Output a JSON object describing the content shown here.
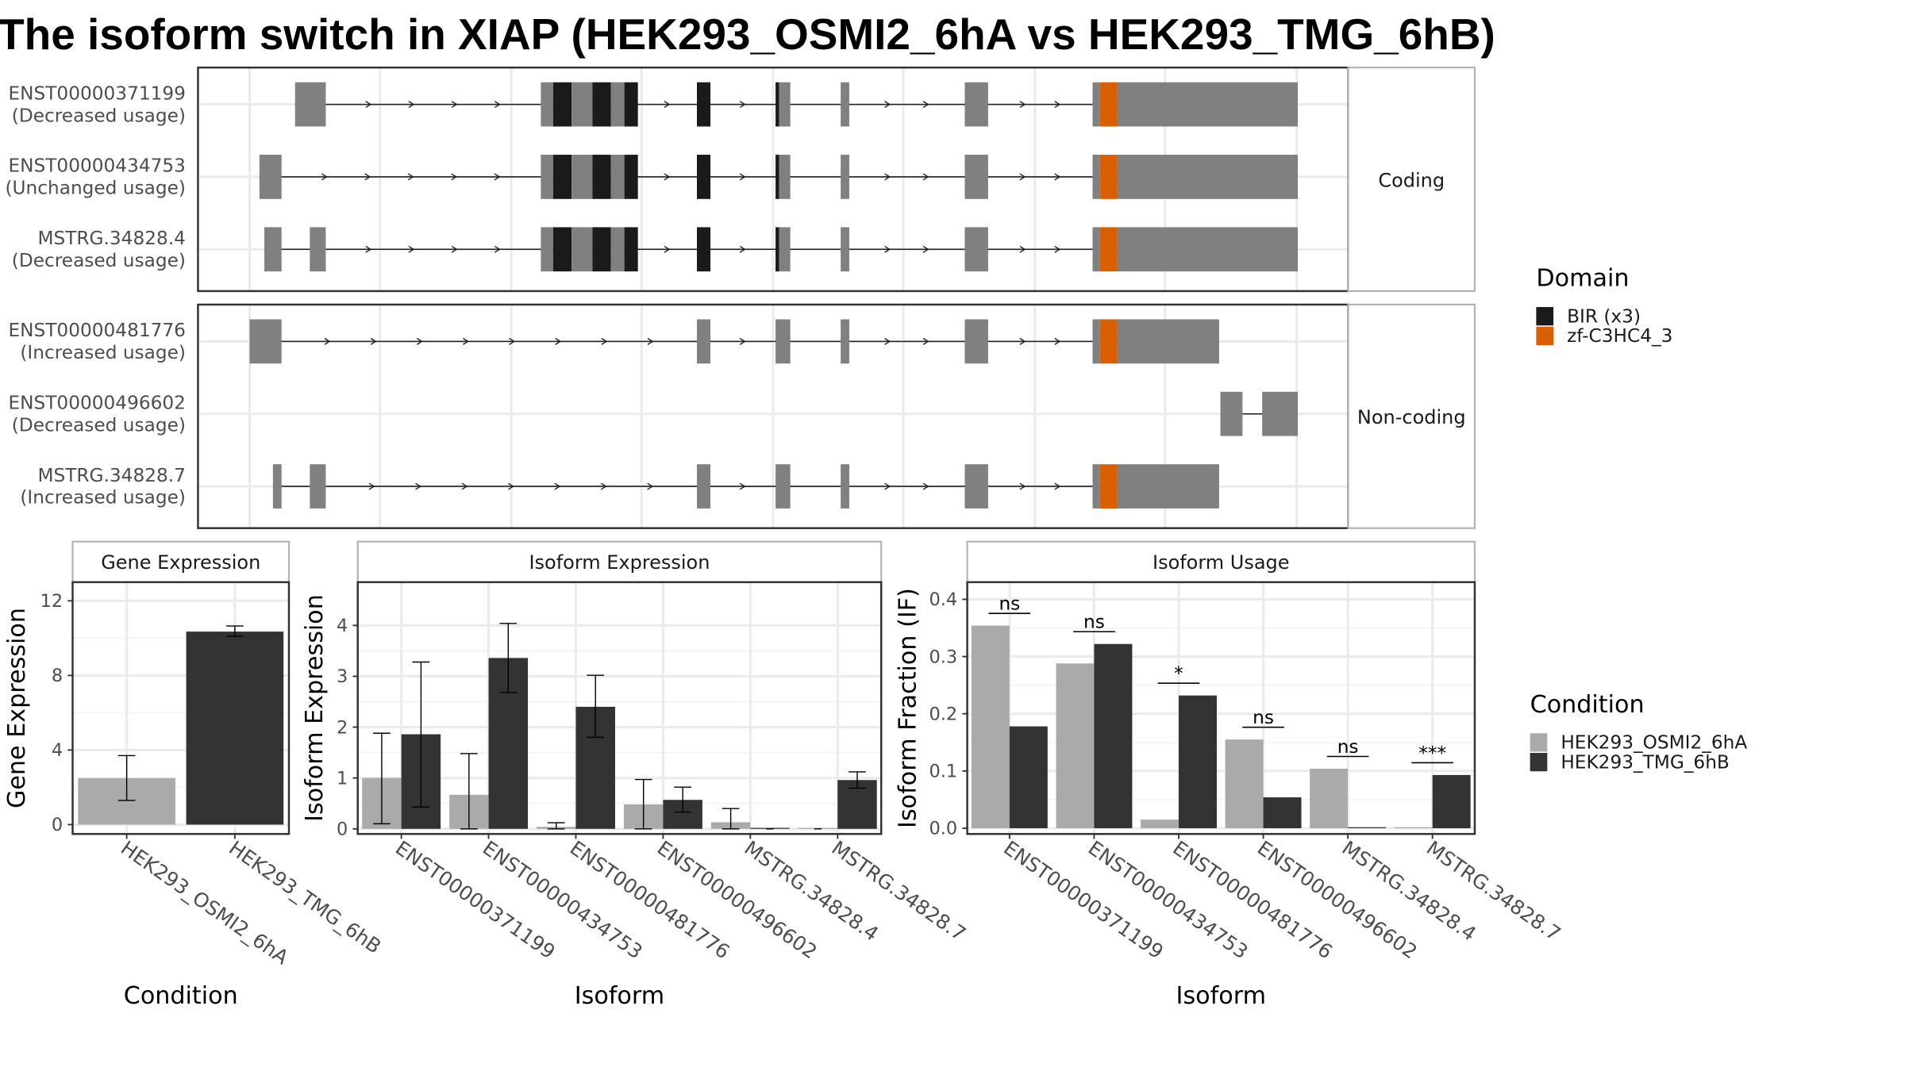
{
  "title": "The isoform switch in XIAP (HEK293_OSMI2_6hA vs HEK293_TMG_6hB)",
  "colors": {
    "exon": "#808080",
    "bir": "#1a1a1a",
    "zf": "#d95f02",
    "cond_a": "#aaaaaa",
    "cond_b": "#333333"
  },
  "structure": {
    "groups": [
      {
        "strip": "Coding",
        "isoforms": [
          {
            "id": "ENST00000371199",
            "usage": "(Decreased usage)",
            "exons": [
              [
                240,
                265,
                "n"
              ],
              [
                440,
                450,
                "n"
              ],
              [
                450,
                465,
                "bir"
              ],
              [
                465,
                482,
                "n"
              ],
              [
                482,
                497,
                "bir"
              ],
              [
                497,
                508,
                "n"
              ],
              [
                508,
                519,
                "bir"
              ],
              [
                567,
                578,
                "bir"
              ],
              [
                631,
                634,
                "bir"
              ],
              [
                634,
                643,
                "n"
              ],
              [
                684,
                691,
                "n"
              ],
              [
                785,
                804,
                "n"
              ],
              [
                889,
                895,
                "n"
              ],
              [
                895,
                909,
                "zf"
              ],
              [
                909,
                1056,
                "n"
              ]
            ]
          },
          {
            "id": "ENST00000434753",
            "usage": "(Unchanged usage)",
            "exons": [
              [
                211,
                229,
                "n"
              ],
              [
                440,
                450,
                "n"
              ],
              [
                450,
                465,
                "bir"
              ],
              [
                465,
                482,
                "n"
              ],
              [
                482,
                497,
                "bir"
              ],
              [
                497,
                508,
                "n"
              ],
              [
                508,
                519,
                "bir"
              ],
              [
                567,
                578,
                "bir"
              ],
              [
                631,
                634,
                "bir"
              ],
              [
                634,
                643,
                "n"
              ],
              [
                684,
                691,
                "n"
              ],
              [
                785,
                804,
                "n"
              ],
              [
                889,
                895,
                "n"
              ],
              [
                895,
                909,
                "zf"
              ],
              [
                909,
                1056,
                "n"
              ]
            ]
          },
          {
            "id": "MSTRG.34828.4",
            "usage": "(Decreased usage)",
            "exons": [
              [
                215,
                229,
                "n"
              ],
              [
                252,
                265,
                "n"
              ],
              [
                440,
                450,
                "n"
              ],
              [
                450,
                465,
                "bir"
              ],
              [
                465,
                482,
                "n"
              ],
              [
                482,
                497,
                "bir"
              ],
              [
                497,
                508,
                "n"
              ],
              [
                508,
                519,
                "bir"
              ],
              [
                567,
                578,
                "bir"
              ],
              [
                631,
                634,
                "bir"
              ],
              [
                634,
                643,
                "n"
              ],
              [
                684,
                691,
                "n"
              ],
              [
                785,
                804,
                "n"
              ],
              [
                889,
                895,
                "n"
              ],
              [
                895,
                909,
                "zf"
              ],
              [
                909,
                1056,
                "n"
              ]
            ]
          }
        ]
      },
      {
        "strip": "Non-coding",
        "isoforms": [
          {
            "id": "ENST00000481776",
            "usage": "(Increased usage)",
            "exons": [
              [
                203,
                229,
                "n"
              ],
              [
                567,
                578,
                "n"
              ],
              [
                631,
                643,
                "n"
              ],
              [
                684,
                691,
                "n"
              ],
              [
                785,
                804,
                "n"
              ],
              [
                889,
                895,
                "n"
              ],
              [
                895,
                909,
                "zf"
              ],
              [
                909,
                992,
                "n"
              ]
            ]
          },
          {
            "id": "ENST00000496602",
            "usage": "(Decreased usage)",
            "exons": [
              [
                993,
                1011,
                "n"
              ],
              [
                1027,
                1056,
                "n"
              ]
            ]
          },
          {
            "id": "MSTRG.34828.7",
            "usage": "(Increased usage)",
            "exons": [
              [
                222,
                229,
                "n"
              ],
              [
                252,
                265,
                "n"
              ],
              [
                567,
                578,
                "n"
              ],
              [
                631,
                643,
                "n"
              ],
              [
                684,
                691,
                "n"
              ],
              [
                785,
                804,
                "n"
              ],
              [
                889,
                895,
                "n"
              ],
              [
                895,
                909,
                "zf"
              ],
              [
                909,
                992,
                "n"
              ]
            ]
          }
        ]
      }
    ]
  },
  "legend_domain": {
    "title": "Domain",
    "items": [
      {
        "label": "BIR (x3)",
        "color": "#1a1a1a"
      },
      {
        "label": "zf-C3HC4_3",
        "color": "#d95f02"
      }
    ]
  },
  "legend_condition": {
    "title": "Condition",
    "items": [
      {
        "label": "HEK293_OSMI2_6hA",
        "color": "#aaaaaa"
      },
      {
        "label": "HEK293_TMG_6hB",
        "color": "#333333"
      }
    ]
  },
  "chart_data": [
    {
      "type": "bar",
      "title": "Gene Expression",
      "xlabel": "Condition",
      "ylabel": "Gene Expression",
      "categories": [
        "HEK293_OSMI2_6hA",
        "HEK293_TMG_6hB"
      ],
      "values": [
        2.5,
        10.35
      ],
      "errors": [
        [
          1.3,
          3.7
        ],
        [
          10.1,
          10.65
        ]
      ],
      "colors": [
        "#aaaaaa",
        "#333333"
      ],
      "ylim": [
        -0.5,
        13
      ],
      "yticks": [
        0,
        4,
        8,
        12
      ]
    },
    {
      "type": "bar",
      "title": "Isoform Expression",
      "xlabel": "Isoform",
      "ylabel": "Isoform Expression",
      "categories": [
        "ENST00000371199",
        "ENST00000434753",
        "ENST00000481776",
        "ENST00000496602",
        "MSTRG.34828.4",
        "MSTRG.34828.7"
      ],
      "series": [
        {
          "name": "HEK293_OSMI2_6hA",
          "values": [
            1.0,
            0.67,
            0.04,
            0.48,
            0.13,
            0.0
          ],
          "errors": [
            [
              0.1,
              1.88
            ],
            [
              0.0,
              1.48
            ],
            [
              0.0,
              0.12
            ],
            [
              0.0,
              0.97
            ],
            [
              0.0,
              0.4
            ],
            [
              0.0,
              0.0
            ]
          ]
        },
        {
          "name": "HEK293_TMG_6hB",
          "values": [
            1.86,
            3.36,
            2.4,
            0.57,
            0.0,
            0.96
          ],
          "errors": [
            [
              0.43,
              3.28
            ],
            [
              2.68,
              4.04
            ],
            [
              1.8,
              3.02
            ],
            [
              0.33,
              0.82
            ],
            [
              0.0,
              0.0
            ],
            [
              0.8,
              1.12
            ]
          ]
        }
      ],
      "ylim": [
        -0.1,
        4.85
      ],
      "yticks": [
        0,
        1,
        2,
        3,
        4
      ]
    },
    {
      "type": "bar",
      "title": "Isoform Usage",
      "xlabel": "Isoform",
      "ylabel": "Isoform Fraction (IF)",
      "categories": [
        "ENST00000371199",
        "ENST00000434753",
        "ENST00000481776",
        "ENST00000496602",
        "MSTRG.34828.4",
        "MSTRG.34828.7"
      ],
      "series": [
        {
          "name": "HEK293_OSMI2_6hA",
          "values": [
            0.354,
            0.288,
            0.015,
            0.155,
            0.104,
            0.0
          ]
        },
        {
          "name": "HEK293_TMG_6hB",
          "values": [
            0.178,
            0.322,
            0.232,
            0.054,
            0.0,
            0.093
          ]
        }
      ],
      "significance": [
        "ns",
        "ns",
        "*",
        "ns",
        "ns",
        "***"
      ],
      "ylim": [
        -0.01,
        0.43
      ],
      "yticks": [
        0.0,
        0.1,
        0.2,
        0.3,
        0.4
      ],
      "yticklabels": [
        "0.0",
        "0.1",
        "0.2",
        "0.3",
        "0.4"
      ]
    }
  ]
}
